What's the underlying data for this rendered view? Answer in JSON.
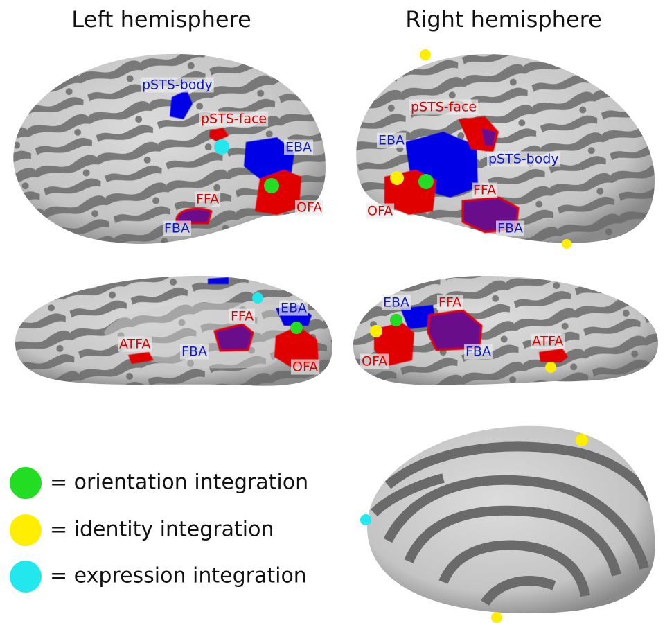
{
  "headings": [
    "Left hemisphere",
    "Right hemisphere"
  ],
  "views": [
    {
      "labels": [
        "pSTS-body",
        "pSTS-face",
        "EBA",
        "OFA",
        "FFA",
        "FBA"
      ]
    },
    {
      "labels": [
        "pSTS-face",
        "EBA",
        "pSTS-body",
        "OFA",
        "FFA",
        "FBA"
      ]
    },
    {
      "labels": [
        "EBA",
        "FFA",
        "ATFA",
        "FBA",
        "OFA"
      ]
    },
    {
      "labels": [
        "EBA",
        "FFA",
        "FBA",
        "OFA",
        "ATFA"
      ]
    }
  ],
  "legend": [
    {
      "label": "= orientation integration"
    },
    {
      "label": "= identity integration"
    },
    {
      "label": "= expression integration"
    }
  ]
}
